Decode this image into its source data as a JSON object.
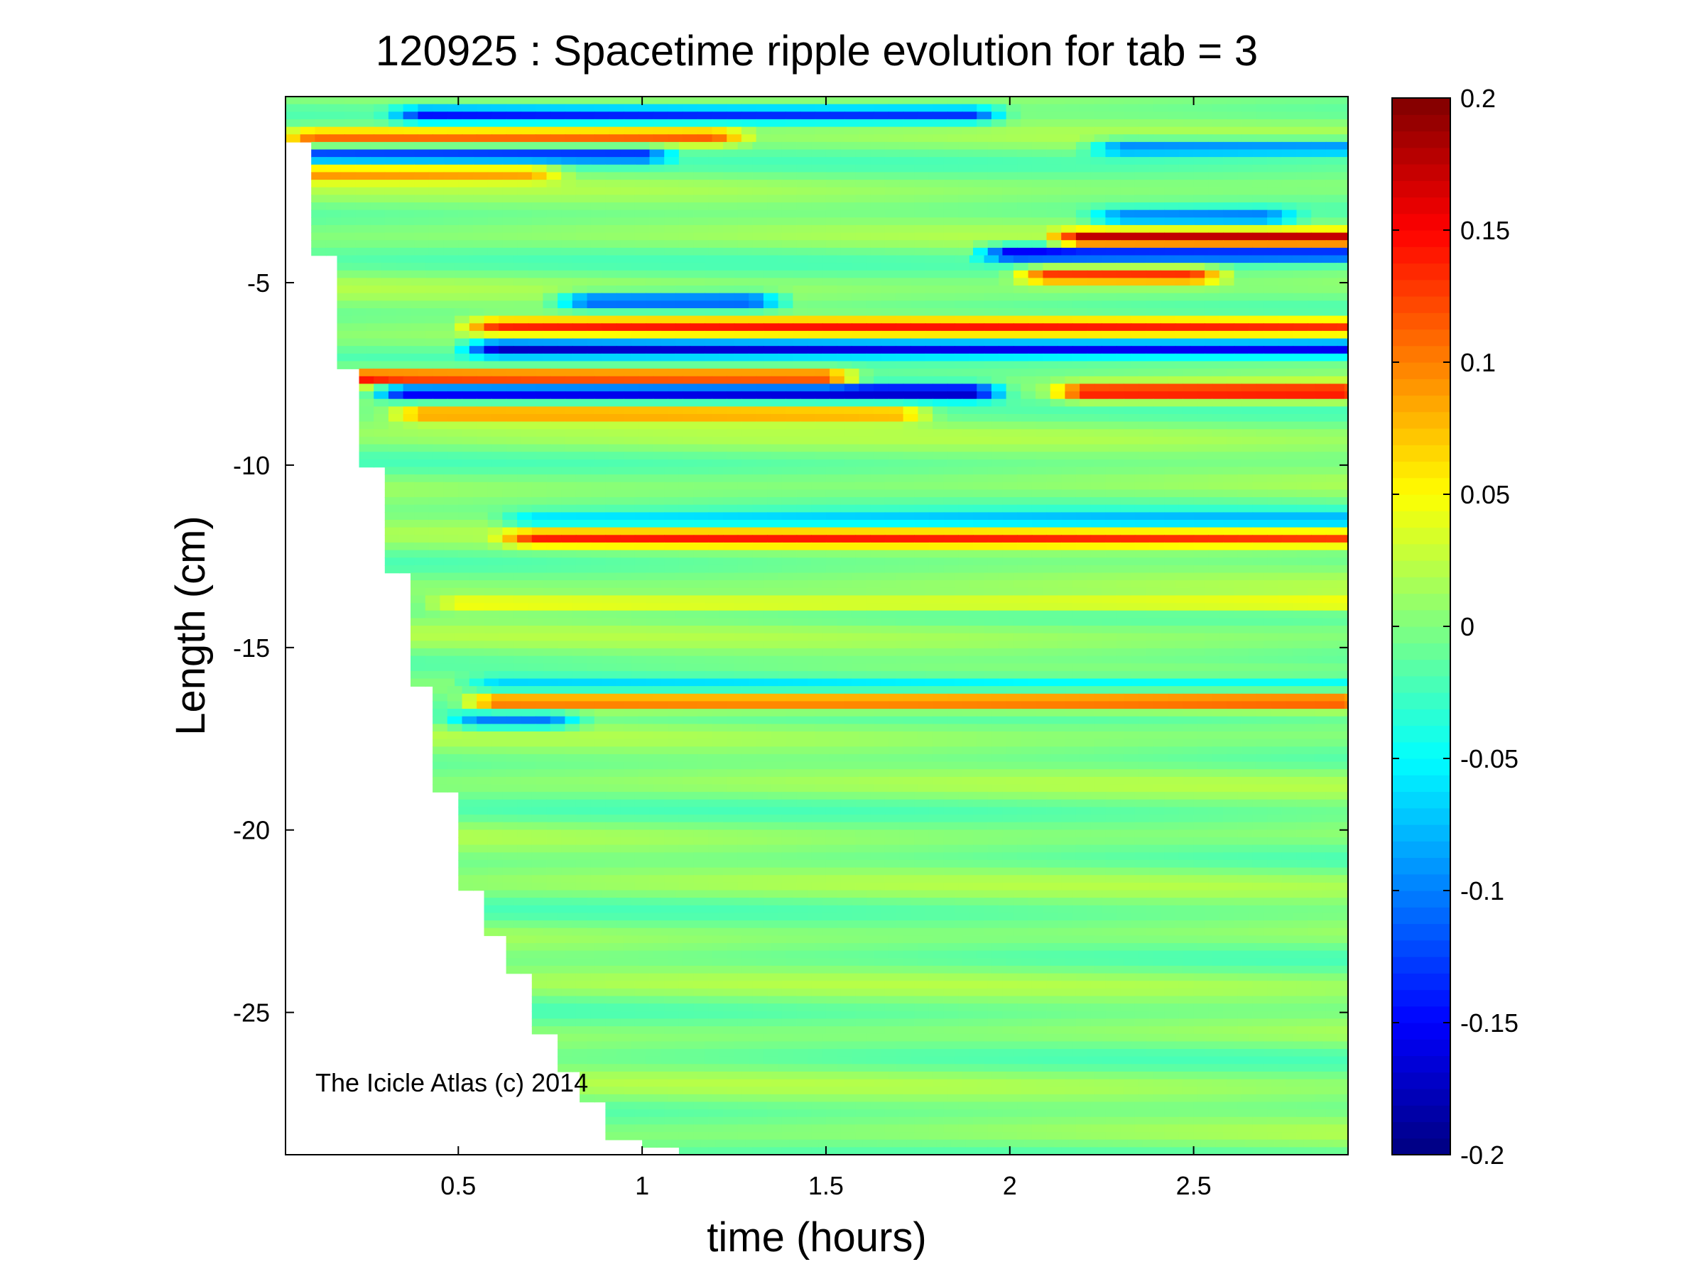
{
  "chart_data": {
    "type": "heatmap",
    "title": "120925 : Spacetime ripple evolution for tab = 3",
    "xlabel": "time (hours)",
    "ylabel": "Length (cm)",
    "xlim": [
      0.03,
      2.92
    ],
    "ylim": [
      -28.9,
      0.1
    ],
    "x_ticks": [
      0.5,
      1,
      1.5,
      2,
      2.5
    ],
    "x_tick_labels": [
      "0.5",
      "1",
      "1.5",
      "2",
      "2.5"
    ],
    "y_ticks": [
      -5,
      -10,
      -15,
      -20,
      -25
    ],
    "y_tick_labels": [
      "-5",
      "-10",
      "-15",
      "-20",
      "-25"
    ],
    "colormap": "jet",
    "clim": [
      -0.2,
      0.2
    ],
    "colorbar_ticks": [
      0.2,
      0.15,
      0.1,
      0.05,
      0,
      -0.05,
      -0.1,
      -0.15,
      -0.2
    ],
    "colorbar_tick_labels": [
      "0.2",
      "0.15",
      "0.1",
      "0.05",
      "0",
      "-0.05",
      "-0.1",
      "-0.15",
      "-0.2"
    ],
    "colorbar_position": "right",
    "grid": false,
    "annotation": "The Icicle Atlas (c) 2014",
    "data_start_boundary": [
      {
        "time": 0.03,
        "length": -1.2
      },
      {
        "time": 0.1,
        "length": -4.3
      },
      {
        "time": 0.17,
        "length": -7.4
      },
      {
        "time": 0.23,
        "length": -10.0
      },
      {
        "time": 0.3,
        "length": -12.9
      },
      {
        "time": 0.37,
        "length": -16.1
      },
      {
        "time": 0.43,
        "length": -18.9
      },
      {
        "time": 0.5,
        "length": -21.6
      },
      {
        "time": 0.57,
        "length": -22.8
      },
      {
        "time": 0.63,
        "length": -24.0
      },
      {
        "time": 0.7,
        "length": -25.5
      },
      {
        "time": 0.77,
        "length": -26.6
      },
      {
        "time": 0.83,
        "length": -27.4
      },
      {
        "time": 0.9,
        "length": -28.4
      },
      {
        "time": 1.0,
        "length": -28.6
      },
      {
        "time": 1.1,
        "length": -28.8
      },
      {
        "time": 1.17,
        "length": -28.9
      }
    ],
    "ripple_bands": [
      {
        "length": -0.4,
        "amplitude": -0.13,
        "t_start": 0.4,
        "t_end": 1.9
      },
      {
        "length": -1.0,
        "amplitude": 0.11,
        "t_start": 0.1,
        "t_end": 1.2
      },
      {
        "length": -1.5,
        "amplitude": -0.12,
        "t_start": 0.1,
        "t_end": 1.0
      },
      {
        "length": -1.3,
        "amplitude": -0.11,
        "t_start": 2.3,
        "t_end": 2.92
      },
      {
        "length": -2.0,
        "amplitude": 0.09,
        "t_start": 0.1,
        "t_end": 0.7
      },
      {
        "length": -3.2,
        "amplitude": -0.1,
        "t_start": 2.3,
        "t_end": 2.7
      },
      {
        "length": -3.8,
        "amplitude": 0.17,
        "t_start": 2.2,
        "t_end": 2.92
      },
      {
        "length": -4.2,
        "amplitude": -0.16,
        "t_start": 2.0,
        "t_end": 2.92
      },
      {
        "length": -4.8,
        "amplitude": 0.14,
        "t_start": 2.1,
        "t_end": 2.5
      },
      {
        "length": -5.5,
        "amplitude": -0.13,
        "t_start": 0.85,
        "t_end": 1.3
      },
      {
        "length": -6.2,
        "amplitude": 0.13,
        "t_start": 0.6,
        "t_end": 2.92
      },
      {
        "length": -6.8,
        "amplitude": -0.17,
        "t_start": 0.6,
        "t_end": 2.92
      },
      {
        "length": -7.6,
        "amplitude": 0.15,
        "t_start": 0.2,
        "t_end": 1.5
      },
      {
        "length": -8.0,
        "amplitude": -0.19,
        "t_start": 0.35,
        "t_end": 1.9
      },
      {
        "length": -8.0,
        "amplitude": 0.16,
        "t_start": 2.2,
        "t_end": 2.92
      },
      {
        "length": -8.6,
        "amplitude": 0.1,
        "t_start": 0.4,
        "t_end": 1.7
      },
      {
        "length": -11.5,
        "amplitude": -0.07,
        "t_start": 0.7,
        "t_end": 2.92
      },
      {
        "length": -12.0,
        "amplitude": 0.12,
        "t_start": 0.7,
        "t_end": 2.92
      },
      {
        "length": -13.8,
        "amplitude": 0.06,
        "t_start": 0.5,
        "t_end": 2.92
      },
      {
        "length": -16.0,
        "amplitude": -0.07,
        "t_start": 0.6,
        "t_end": 2.92
      },
      {
        "length": -16.5,
        "amplitude": 0.13,
        "t_start": 0.6,
        "t_end": 2.92
      },
      {
        "length": -17.0,
        "amplitude": -0.1,
        "t_start": 0.55,
        "t_end": 0.75
      }
    ]
  }
}
